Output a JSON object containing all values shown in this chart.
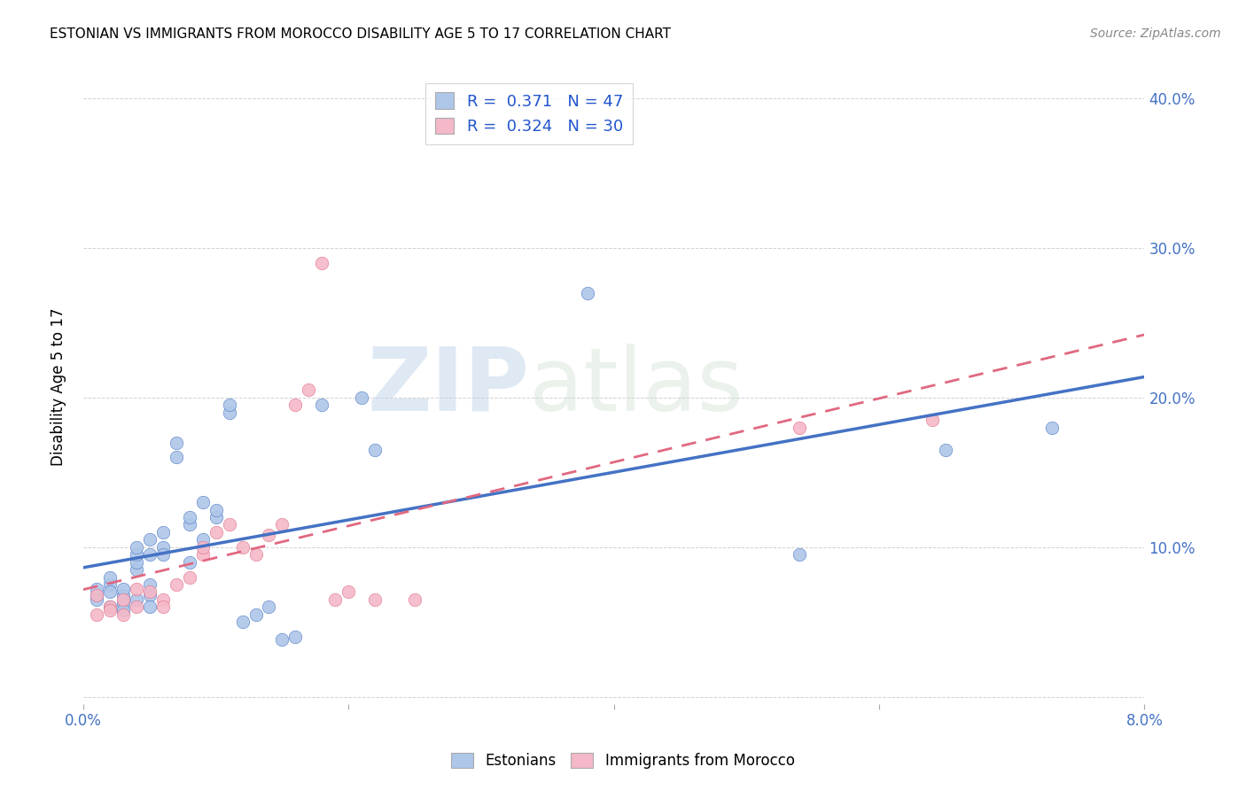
{
  "title": "ESTONIAN VS IMMIGRANTS FROM MOROCCO DISABILITY AGE 5 TO 17 CORRELATION CHART",
  "source": "Source: ZipAtlas.com",
  "ylabel": "Disability Age 5 to 17",
  "legend1_R": 0.371,
  "legend1_N": 47,
  "legend2_R": 0.324,
  "legend2_N": 30,
  "color_estonian": "#aec6e8",
  "color_morocco": "#f4b8c8",
  "color_line_estonian": "#4472c4",
  "color_line_morocco": "#e06880",
  "xlim": [
    0.0,
    0.08
  ],
  "ylim": [
    -0.005,
    0.42
  ],
  "x_ticks": [
    0.0,
    0.02,
    0.04,
    0.06,
    0.08
  ],
  "x_tick_labels": [
    "0.0%",
    "",
    "",
    "",
    "8.0%"
  ],
  "y_ticks": [
    0.0,
    0.1,
    0.2,
    0.3,
    0.4
  ],
  "y_tick_labels": [
    "",
    "10.0%",
    "20.0%",
    "30.0%",
    "40.0%"
  ],
  "estonian_x": [
    0.001,
    0.001,
    0.001,
    0.002,
    0.002,
    0.002,
    0.002,
    0.003,
    0.003,
    0.003,
    0.003,
    0.004,
    0.004,
    0.004,
    0.004,
    0.004,
    0.005,
    0.005,
    0.005,
    0.005,
    0.005,
    0.006,
    0.006,
    0.006,
    0.007,
    0.007,
    0.008,
    0.008,
    0.008,
    0.009,
    0.009,
    0.01,
    0.01,
    0.011,
    0.011,
    0.012,
    0.013,
    0.014,
    0.015,
    0.016,
    0.018,
    0.021,
    0.022,
    0.038,
    0.054,
    0.065,
    0.073
  ],
  "estonian_y": [
    0.068,
    0.072,
    0.065,
    0.075,
    0.08,
    0.07,
    0.06,
    0.068,
    0.062,
    0.058,
    0.072,
    0.085,
    0.09,
    0.095,
    0.1,
    0.065,
    0.095,
    0.105,
    0.075,
    0.068,
    0.06,
    0.11,
    0.1,
    0.095,
    0.16,
    0.17,
    0.115,
    0.12,
    0.09,
    0.105,
    0.13,
    0.12,
    0.125,
    0.19,
    0.195,
    0.05,
    0.055,
    0.06,
    0.038,
    0.04,
    0.195,
    0.2,
    0.165,
    0.27,
    0.095,
    0.165,
    0.18
  ],
  "morocco_x": [
    0.001,
    0.001,
    0.002,
    0.002,
    0.003,
    0.003,
    0.004,
    0.004,
    0.005,
    0.006,
    0.006,
    0.007,
    0.008,
    0.009,
    0.009,
    0.01,
    0.011,
    0.012,
    0.013,
    0.014,
    0.015,
    0.016,
    0.017,
    0.018,
    0.019,
    0.02,
    0.022,
    0.025,
    0.054,
    0.064
  ],
  "morocco_y": [
    0.068,
    0.055,
    0.06,
    0.058,
    0.065,
    0.055,
    0.072,
    0.06,
    0.07,
    0.065,
    0.06,
    0.075,
    0.08,
    0.095,
    0.1,
    0.11,
    0.115,
    0.1,
    0.095,
    0.108,
    0.115,
    0.195,
    0.205,
    0.29,
    0.065,
    0.07,
    0.065,
    0.065,
    0.18,
    0.185
  ]
}
